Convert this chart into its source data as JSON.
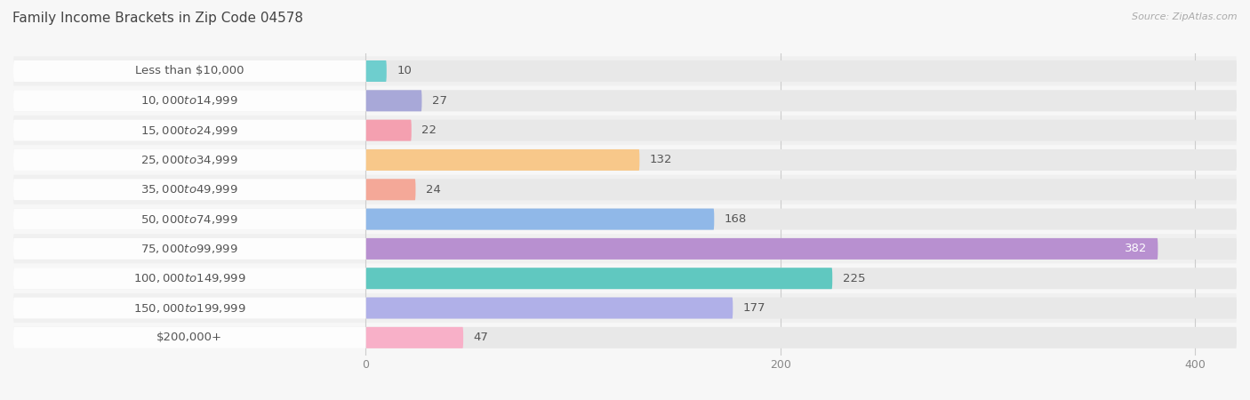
{
  "title": "Family Income Brackets in Zip Code 04578",
  "source": "Source: ZipAtlas.com",
  "categories": [
    "Less than $10,000",
    "$10,000 to $14,999",
    "$15,000 to $24,999",
    "$25,000 to $34,999",
    "$35,000 to $49,999",
    "$50,000 to $74,999",
    "$75,000 to $99,999",
    "$100,000 to $149,999",
    "$150,000 to $199,999",
    "$200,000+"
  ],
  "values": [
    10,
    27,
    22,
    132,
    24,
    168,
    382,
    225,
    177,
    47
  ],
  "bar_colors": [
    "#6ecece",
    "#a8a8d8",
    "#f4a0b0",
    "#f8c88a",
    "#f4a898",
    "#90b8e8",
    "#b890d0",
    "#60c8c0",
    "#b0b0e8",
    "#f8b0c8"
  ],
  "bg_color": "#f7f7f7",
  "bar_bg_color": "#e8e8e8",
  "row_bg_colors": [
    "#f0f0f0",
    "#f7f7f7"
  ],
  "xlim_left": -170,
  "xlim_right": 420,
  "xticks": [
    0,
    200,
    400
  ],
  "title_fontsize": 11,
  "label_fontsize": 9.5,
  "value_fontsize": 9.5
}
